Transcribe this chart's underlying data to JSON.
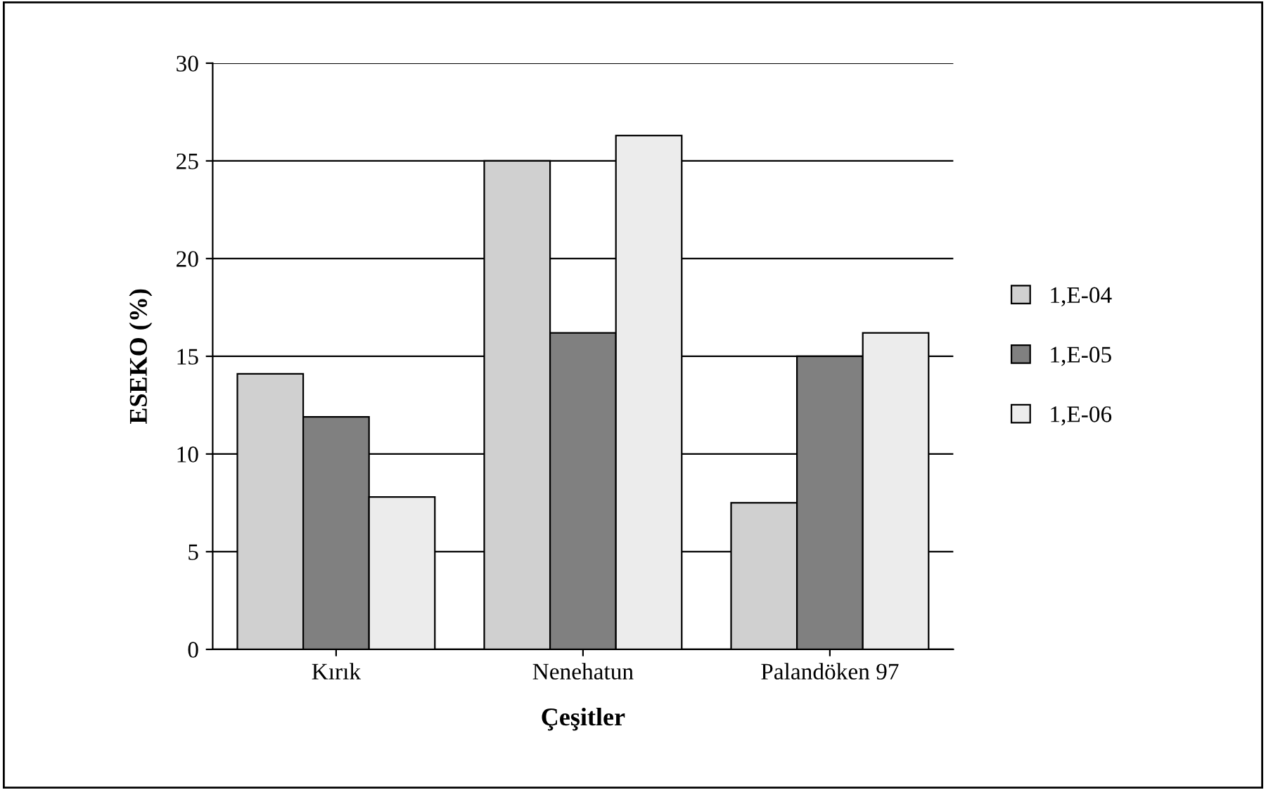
{
  "chart_data": {
    "type": "bar",
    "xlabel": "Çeşitler",
    "ylabel": "ESEKO (%)",
    "categories": [
      "Kırık",
      "Nenehatun",
      "Palandöken 97"
    ],
    "series": [
      {
        "name": "1,E-04",
        "color": "#d0d0d0",
        "values": [
          14.1,
          25.0,
          7.5
        ]
      },
      {
        "name": "1,E-05",
        "color": "#808080",
        "values": [
          11.9,
          16.2,
          15.0
        ]
      },
      {
        "name": "1,E-06",
        "color": "#ececec",
        "values": [
          7.8,
          26.3,
          16.2
        ]
      }
    ],
    "ylim": [
      0,
      30
    ],
    "yticks": [
      0,
      5,
      10,
      15,
      20,
      25,
      30
    ],
    "grid": "y",
    "legend": "right"
  }
}
